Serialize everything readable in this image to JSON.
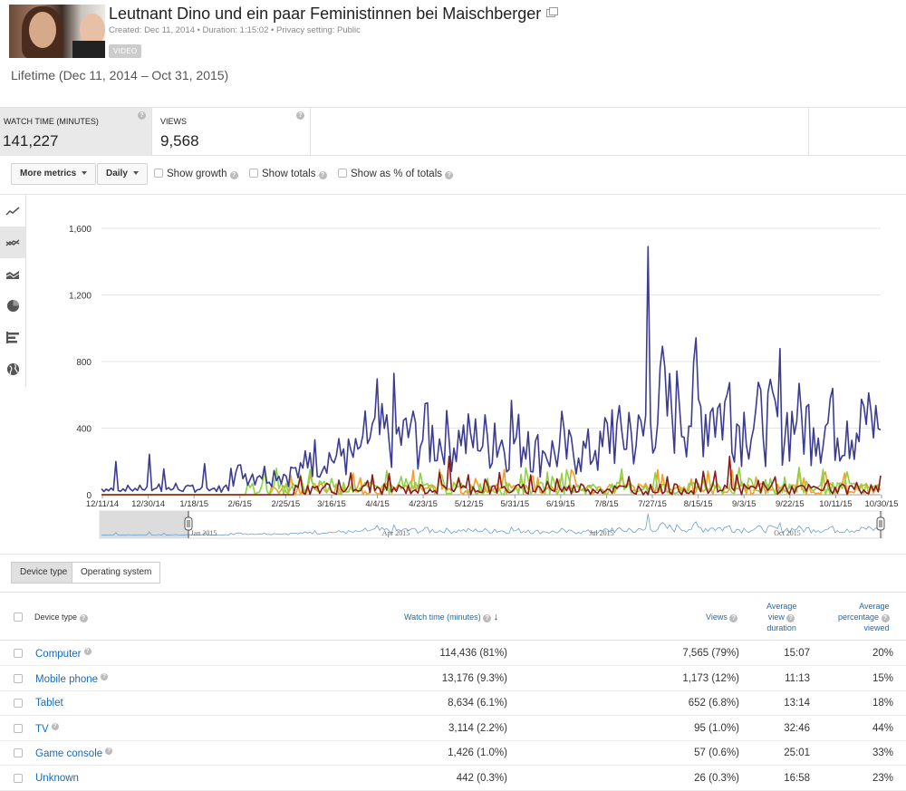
{
  "video": {
    "title": "Leutnant Dino und ein paar Feministinnen bei Maischberger",
    "meta": "Created: Dec 11, 2014  •  Duration: 1:15:02  •  Privacy setting: Public",
    "badge": "VIDEO",
    "period": "Lifetime (Dec 11, 2014 – Oct 31, 2015)"
  },
  "metrics": [
    {
      "label": "WATCH TIME (MINUTES)",
      "value": "141,227"
    },
    {
      "label": "VIEWS",
      "value": "9,568"
    }
  ],
  "toolbar": {
    "more_metrics": "More metrics",
    "interval": "Daily",
    "show_growth": "Show growth",
    "show_totals": "Show totals",
    "show_pct": "Show as % of totals"
  },
  "side_icons": [
    "line-chart-icon",
    "multi-line-chart-icon",
    "stacked-area-icon",
    "pie-chart-icon",
    "bar-chart-icon",
    "globe-icon"
  ],
  "chart_data": {
    "type": "line",
    "ylim": [
      0,
      1600
    ],
    "yticks": [
      "0",
      "400",
      "800",
      "1,200",
      "1,600"
    ],
    "xticks": [
      "12/11/14",
      "12/30/14",
      "1/18/15",
      "2/6/15",
      "2/25/15",
      "3/16/15",
      "4/4/15",
      "4/23/15",
      "5/12/15",
      "5/31/15",
      "6/19/15",
      "7/8/15",
      "7/27/15",
      "8/15/15",
      "9/3/15",
      "9/22/15",
      "10/11/15",
      "10/30/15"
    ],
    "navigator_labels": [
      "Jan 2015",
      "Apr 2015",
      "Jul 2015",
      "Oct 2015"
    ],
    "series": [
      {
        "color": "#3b3b94",
        "peak": 1490,
        "peak_date": "7/27/15"
      },
      {
        "color": "#8b1a1a"
      },
      {
        "color": "#8bd442"
      },
      {
        "color": "#f2a024"
      }
    ]
  },
  "table": {
    "tabs": [
      "Device type",
      "Operating system"
    ],
    "headers": {
      "name": "Device type",
      "watch_time": "Watch time (minutes)",
      "views": "Views",
      "avg_duration_l1": "Average",
      "avg_duration_l2": "view",
      "avg_duration_l3": "duration",
      "avg_pct_l1": "Average",
      "avg_pct_l2": "percentage",
      "avg_pct_l3": "viewed"
    },
    "rows": [
      {
        "name": "Computer",
        "watch": "114,436 (81%)",
        "views": "7,565 (79%)",
        "duration": "15:07",
        "pct": "20%"
      },
      {
        "name": "Mobile phone",
        "watch": "13,176 (9.3%)",
        "views": "1,173 (12%)",
        "duration": "11:13",
        "pct": "15%"
      },
      {
        "name": "Tablet",
        "watch": "8,634 (6.1%)",
        "views": "652 (6.8%)",
        "duration": "13:14",
        "pct": "18%"
      },
      {
        "name": "TV",
        "watch": "3,114 (2.2%)",
        "views": "95 (1.0%)",
        "duration": "32:46",
        "pct": "44%"
      },
      {
        "name": "Game console",
        "watch": "1,426 (1.0%)",
        "views": "57 (0.6%)",
        "duration": "25:01",
        "pct": "33%"
      },
      {
        "name": "Unknown",
        "watch": "442 (0.3%)",
        "views": "26 (0.3%)",
        "duration": "16:58",
        "pct": "23%"
      }
    ]
  }
}
